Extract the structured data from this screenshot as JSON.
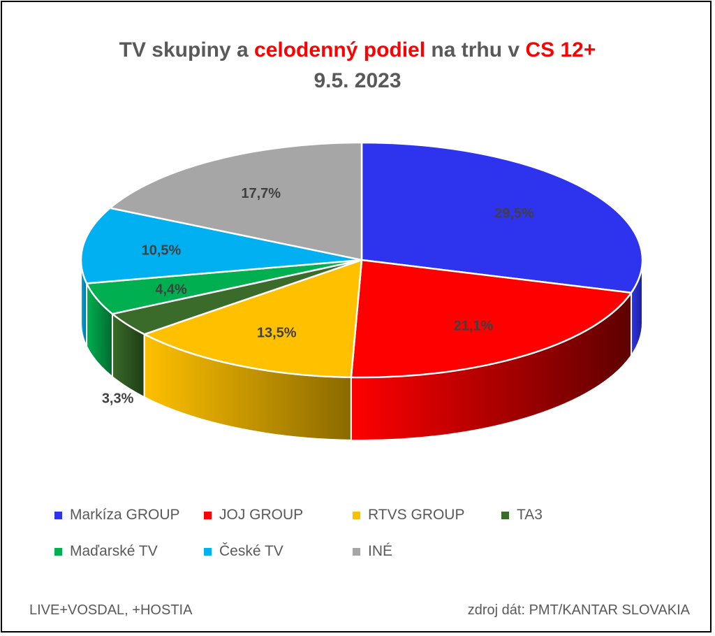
{
  "title": {
    "part1": "TV skupiny a ",
    "part2": "celodenný podiel",
    "part3": " na trhu v ",
    "part4": "CS 12+",
    "line2": "9.5. 2023"
  },
  "chart_data": {
    "type": "pie",
    "categories": [
      "Markíza GROUP",
      "JOJ GROUP",
      "RTVS GROUP",
      "TA3",
      "Maďarské  TV",
      "České  TV",
      "INÉ"
    ],
    "values": [
      29.5,
      21.1,
      13.5,
      3.3,
      4.4,
      10.5,
      17.7
    ],
    "data_labels": [
      "29,5%",
      "21,1%",
      "13,5%",
      "3,3%",
      "4,4%",
      "10,5%",
      "17,7%"
    ],
    "colors": [
      "#2e34ee",
      "#ff0000",
      "#ffc000",
      "#3a6b2a",
      "#00b050",
      "#00b0f0",
      "#a6a6a6"
    ],
    "dark_colors": [
      "#1c2090",
      "#5e0000",
      "#8a6a00",
      "#1f3d16",
      "#006a30",
      "#006a90",
      "#666666"
    ],
    "legend_position": "bottom"
  },
  "footer": {
    "left": "LIVE+VOSDAL, +HOSTIA",
    "right": "zdroj dát: PMT/KANTAR SLOVAKIA"
  }
}
